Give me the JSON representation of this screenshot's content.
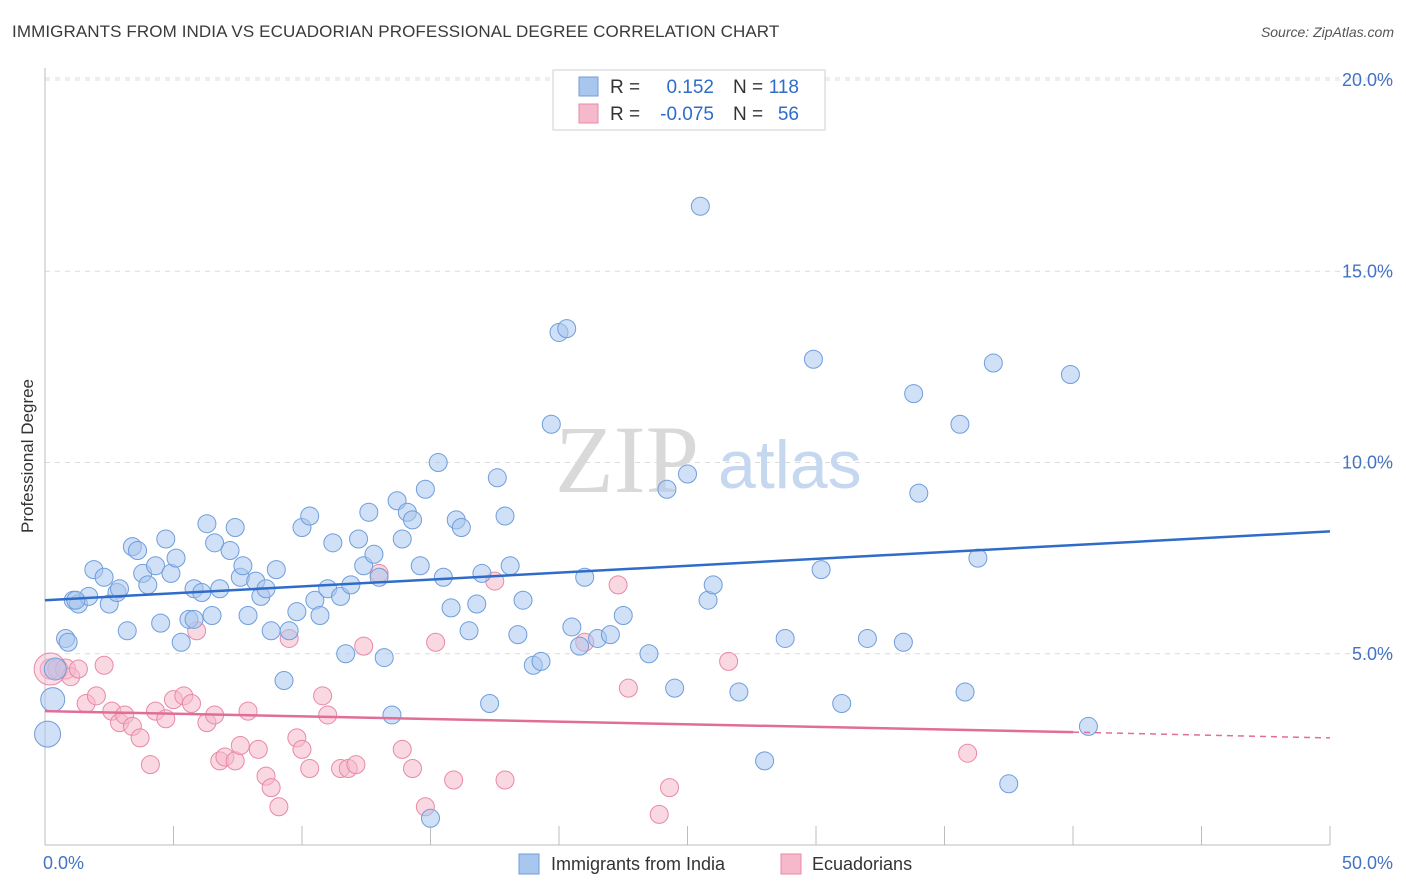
{
  "title": "IMMIGRANTS FROM INDIA VS ECUADORIAN PROFESSIONAL DEGREE CORRELATION CHART",
  "source": "Source: ZipAtlas.com",
  "watermark": {
    "zip": "ZIP",
    "atlas": "atlas"
  },
  "colors": {
    "india_fill": "#a9c6ee",
    "india_stroke": "#6f9edc",
    "india_line": "#2f6cc9",
    "ecu_fill": "#f6b8cb",
    "ecu_stroke": "#e889a8",
    "ecu_line": "#e06e98",
    "grid": "#dcdcdc",
    "axis_label": "#4472c4"
  },
  "legend_box": {
    "rows": [
      {
        "r_label": "R =",
        "r_value": "0.152",
        "n_label": "N =",
        "n_value": "118"
      },
      {
        "r_label": "R =",
        "r_value": "-0.075",
        "n_label": "N =",
        "n_value": "56"
      }
    ]
  },
  "bottom_legend": [
    "Immigrants from India",
    "Ecuadorians"
  ],
  "chart_data": {
    "type": "scatter",
    "title": "IMMIGRANTS FROM INDIA VS ECUADORIAN PROFESSIONAL DEGREE CORRELATION CHART",
    "ylabel": "Professional Degree",
    "xlabel": "",
    "xlim": [
      0,
      50
    ],
    "ylim": [
      0,
      20.5
    ],
    "x_tick_labels": [
      {
        "value": 0,
        "label": "0.0%"
      },
      {
        "value": 50,
        "label": "50.0%"
      }
    ],
    "y_tick_labels": [
      {
        "value": 5,
        "label": "5.0%"
      },
      {
        "value": 10,
        "label": "10.0%"
      },
      {
        "value": 15,
        "label": "15.0%"
      },
      {
        "value": 20,
        "label": "20.0%"
      }
    ],
    "grid": true,
    "legend_position": "top-center",
    "series": [
      {
        "name": "Immigrants from India",
        "r": 0.152,
        "n": 118,
        "trend": {
          "x": [
            0,
            50
          ],
          "y": [
            6.4,
            8.2
          ]
        },
        "points": [
          [
            0.3,
            3.8
          ],
          [
            0.1,
            2.9
          ],
          [
            0.4,
            4.6
          ],
          [
            0.8,
            5.4
          ],
          [
            0.9,
            5.3
          ],
          [
            1.1,
            6.4
          ],
          [
            1.3,
            6.3
          ],
          [
            1.7,
            6.5
          ],
          [
            1.9,
            7.2
          ],
          [
            2.3,
            7.0
          ],
          [
            2.5,
            6.3
          ],
          [
            2.8,
            6.6
          ],
          [
            2.9,
            6.7
          ],
          [
            3.2,
            5.6
          ],
          [
            3.4,
            7.8
          ],
          [
            3.6,
            7.7
          ],
          [
            3.8,
            7.1
          ],
          [
            4.0,
            6.8
          ],
          [
            4.3,
            7.3
          ],
          [
            4.5,
            5.8
          ],
          [
            4.7,
            8.0
          ],
          [
            4.9,
            7.1
          ],
          [
            5.1,
            7.5
          ],
          [
            5.3,
            5.3
          ],
          [
            5.6,
            5.9
          ],
          [
            5.8,
            6.7
          ],
          [
            6.1,
            6.6
          ],
          [
            6.3,
            8.4
          ],
          [
            6.5,
            6.0
          ],
          [
            6.6,
            7.9
          ],
          [
            6.8,
            6.7
          ],
          [
            7.2,
            7.7
          ],
          [
            7.4,
            8.3
          ],
          [
            7.6,
            7.0
          ],
          [
            7.7,
            7.3
          ],
          [
            7.9,
            6.0
          ],
          [
            8.2,
            6.9
          ],
          [
            8.4,
            6.5
          ],
          [
            8.6,
            6.7
          ],
          [
            8.8,
            5.6
          ],
          [
            9.0,
            7.2
          ],
          [
            9.3,
            4.3
          ],
          [
            9.5,
            5.6
          ],
          [
            9.8,
            6.1
          ],
          [
            10.0,
            8.3
          ],
          [
            10.3,
            8.6
          ],
          [
            10.5,
            6.4
          ],
          [
            10.7,
            6.0
          ],
          [
            11.0,
            6.7
          ],
          [
            11.2,
            7.9
          ],
          [
            11.5,
            6.5
          ],
          [
            11.7,
            5.0
          ],
          [
            11.9,
            6.8
          ],
          [
            12.2,
            8.0
          ],
          [
            12.4,
            7.3
          ],
          [
            12.6,
            8.7
          ],
          [
            12.8,
            7.6
          ],
          [
            13.0,
            7.0
          ],
          [
            13.2,
            4.9
          ],
          [
            13.5,
            3.4
          ],
          [
            13.7,
            9.0
          ],
          [
            13.9,
            8.0
          ],
          [
            14.1,
            8.7
          ],
          [
            14.3,
            8.5
          ],
          [
            14.6,
            7.3
          ],
          [
            14.8,
            9.3
          ],
          [
            15.0,
            0.7
          ],
          [
            15.3,
            10.0
          ],
          [
            15.5,
            7.0
          ],
          [
            15.8,
            6.2
          ],
          [
            16.0,
            8.5
          ],
          [
            16.2,
            8.3
          ],
          [
            16.5,
            5.6
          ],
          [
            16.8,
            6.3
          ],
          [
            17.0,
            7.1
          ],
          [
            17.3,
            3.7
          ],
          [
            17.6,
            9.6
          ],
          [
            17.9,
            8.6
          ],
          [
            18.1,
            7.3
          ],
          [
            18.4,
            5.5
          ],
          [
            18.6,
            6.4
          ],
          [
            19.0,
            4.7
          ],
          [
            19.3,
            4.8
          ],
          [
            19.7,
            11.0
          ],
          [
            20.0,
            13.4
          ],
          [
            20.3,
            13.5
          ],
          [
            20.5,
            5.7
          ],
          [
            21.0,
            7.0
          ],
          [
            21.5,
            5.4
          ],
          [
            22.0,
            5.5
          ],
          [
            22.5,
            6.0
          ],
          [
            23.5,
            5.0
          ],
          [
            24.2,
            9.3
          ],
          [
            24.5,
            4.1
          ],
          [
            25.0,
            9.7
          ],
          [
            25.5,
            16.7
          ],
          [
            25.8,
            6.4
          ],
          [
            26.0,
            6.8
          ],
          [
            27.0,
            4.0
          ],
          [
            28.0,
            2.2
          ],
          [
            28.8,
            5.4
          ],
          [
            29.9,
            12.7
          ],
          [
            30.2,
            7.2
          ],
          [
            31.0,
            3.7
          ],
          [
            32.0,
            5.4
          ],
          [
            33.4,
            5.3
          ],
          [
            33.8,
            11.8
          ],
          [
            34.0,
            9.2
          ],
          [
            35.6,
            11.0
          ],
          [
            35.8,
            4.0
          ],
          [
            36.3,
            7.5
          ],
          [
            36.9,
            12.6
          ],
          [
            37.5,
            1.6
          ],
          [
            39.9,
            12.3
          ],
          [
            40.6,
            3.1
          ],
          [
            1.2,
            6.4
          ],
          [
            5.8,
            5.9
          ],
          [
            20.8,
            5.2
          ]
        ]
      },
      {
        "name": "Ecuadorians",
        "r": -0.075,
        "n": 56,
        "trend": {
          "x": [
            0,
            40
          ],
          "y": [
            3.5,
            2.95
          ],
          "dashed_to": {
            "x": 50,
            "y": 2.8
          }
        },
        "points": [
          [
            0.2,
            4.6
          ],
          [
            0.5,
            4.6
          ],
          [
            0.8,
            4.6
          ],
          [
            1.0,
            4.4
          ],
          [
            1.3,
            4.6
          ],
          [
            1.6,
            3.7
          ],
          [
            2.0,
            3.9
          ],
          [
            2.3,
            4.7
          ],
          [
            2.6,
            3.5
          ],
          [
            2.9,
            3.2
          ],
          [
            3.1,
            3.4
          ],
          [
            3.4,
            3.1
          ],
          [
            3.7,
            2.8
          ],
          [
            4.1,
            2.1
          ],
          [
            4.3,
            3.5
          ],
          [
            4.7,
            3.3
          ],
          [
            5.0,
            3.8
          ],
          [
            5.4,
            3.9
          ],
          [
            5.7,
            3.7
          ],
          [
            5.9,
            5.6
          ],
          [
            6.3,
            3.2
          ],
          [
            6.6,
            3.4
          ],
          [
            6.8,
            2.2
          ],
          [
            7.0,
            2.3
          ],
          [
            7.4,
            2.2
          ],
          [
            7.6,
            2.6
          ],
          [
            7.9,
            3.5
          ],
          [
            8.3,
            2.5
          ],
          [
            8.6,
            1.8
          ],
          [
            8.8,
            1.5
          ],
          [
            9.1,
            1.0
          ],
          [
            9.5,
            5.4
          ],
          [
            9.8,
            2.8
          ],
          [
            10.0,
            2.5
          ],
          [
            10.3,
            2.0
          ],
          [
            10.8,
            3.9
          ],
          [
            11.0,
            3.4
          ],
          [
            11.5,
            2.0
          ],
          [
            11.8,
            2.0
          ],
          [
            12.1,
            2.1
          ],
          [
            12.4,
            5.2
          ],
          [
            13.0,
            7.1
          ],
          [
            13.9,
            2.5
          ],
          [
            14.3,
            2.0
          ],
          [
            14.8,
            1.0
          ],
          [
            15.2,
            5.3
          ],
          [
            15.9,
            1.7
          ],
          [
            17.5,
            6.9
          ],
          [
            17.9,
            1.7
          ],
          [
            21.0,
            5.3
          ],
          [
            22.3,
            6.8
          ],
          [
            22.7,
            4.1
          ],
          [
            23.9,
            0.8
          ],
          [
            24.3,
            1.5
          ],
          [
            26.6,
            4.8
          ],
          [
            35.9,
            2.4
          ]
        ]
      }
    ]
  }
}
